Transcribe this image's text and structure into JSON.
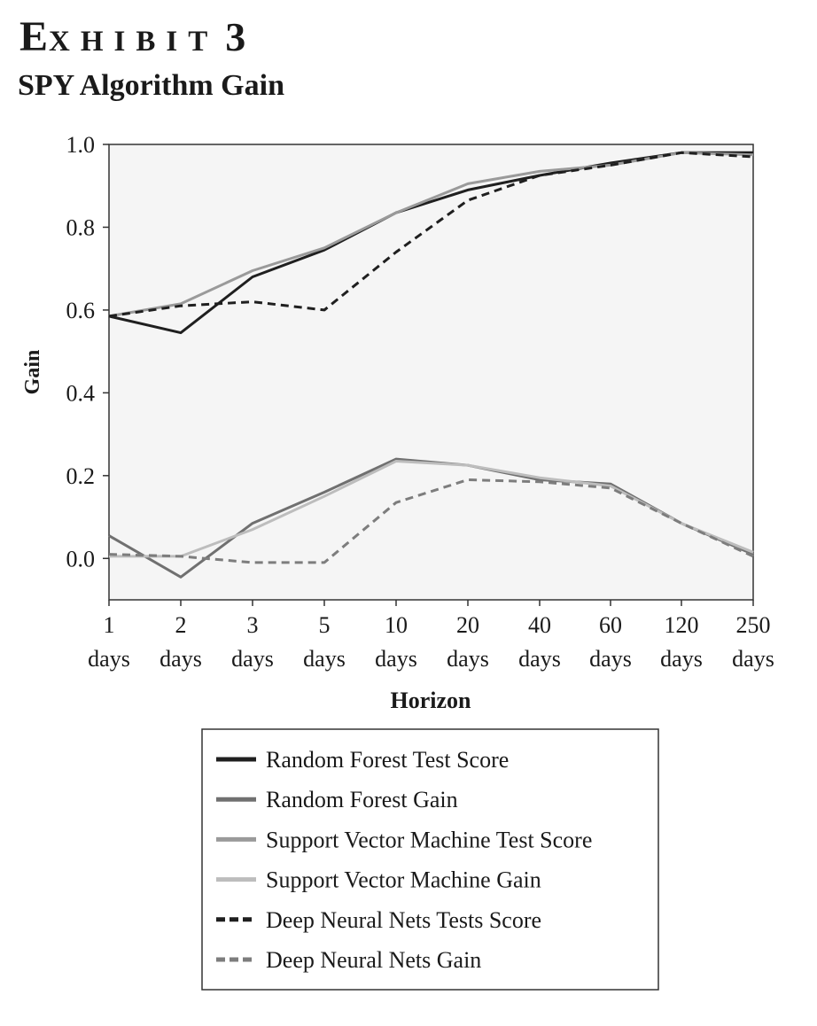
{
  "exhibit": {
    "label": "EXHIBIT 3"
  },
  "chart_data": {
    "type": "line",
    "title": "SPY Algorithm Gain",
    "xlabel": "Horizon",
    "ylabel": "Gain",
    "categories": [
      [
        "1",
        "days"
      ],
      [
        "2",
        "days"
      ],
      [
        "3",
        "days"
      ],
      [
        "5",
        "days"
      ],
      [
        "10",
        "days"
      ],
      [
        "20",
        "days"
      ],
      [
        "40",
        "days"
      ],
      [
        "60",
        "days"
      ],
      [
        "120",
        "days"
      ],
      [
        "250",
        "days"
      ]
    ],
    "ylim": [
      -0.1,
      1.0
    ],
    "yticks": [
      "1.0",
      "0.8",
      "0.6",
      "0.4",
      "0.2",
      "0.0"
    ],
    "ytick_values": [
      1.0,
      0.8,
      0.6,
      0.4,
      0.2,
      0.0
    ],
    "grid": false,
    "legend_position": "bottom-center",
    "series": [
      {
        "name": "Random Forest Test Score",
        "color": "#1f1f1f",
        "dash": false,
        "values": [
          0.585,
          0.545,
          0.68,
          0.745,
          0.835,
          0.89,
          0.925,
          0.955,
          0.98,
          0.98
        ]
      },
      {
        "name": "Random Forest Gain",
        "color": "#707070",
        "dash": false,
        "values": [
          0.055,
          -0.045,
          0.085,
          0.16,
          0.24,
          0.225,
          0.19,
          0.18,
          0.085,
          0.01
        ]
      },
      {
        "name": "Support Vector Machine Test Score",
        "color": "#9a9a9a",
        "dash": false,
        "values": [
          0.585,
          0.615,
          0.695,
          0.75,
          0.835,
          0.905,
          0.935,
          0.95,
          0.98,
          0.975
        ]
      },
      {
        "name": "Support Vector Machine Gain",
        "color": "#bdbdbd",
        "dash": false,
        "values": [
          0.005,
          0.005,
          0.07,
          0.15,
          0.235,
          0.225,
          0.195,
          0.175,
          0.085,
          0.015
        ]
      },
      {
        "name": "Deep Neural Nets Tests Score",
        "color": "#1f1f1f",
        "dash": true,
        "values": [
          0.585,
          0.61,
          0.62,
          0.6,
          0.74,
          0.865,
          0.925,
          0.95,
          0.98,
          0.97
        ]
      },
      {
        "name": "Deep Neural Nets Gain",
        "color": "#7d7d7d",
        "dash": true,
        "values": [
          0.01,
          0.005,
          -0.01,
          -0.01,
          0.135,
          0.19,
          0.185,
          0.17,
          0.085,
          0.005
        ]
      }
    ]
  }
}
